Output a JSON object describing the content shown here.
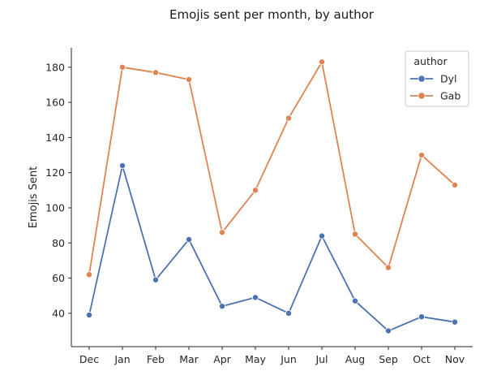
{
  "chart_data": {
    "type": "line",
    "title": "Emojis sent per month, by author",
    "xlabel": "",
    "ylabel": "Emojis Sent",
    "categories": [
      "Dec",
      "Jan",
      "Feb",
      "Mar",
      "Apr",
      "May",
      "Jun",
      "Jul",
      "Aug",
      "Sep",
      "Oct",
      "Nov"
    ],
    "yticks": [
      40,
      60,
      80,
      100,
      120,
      140,
      160,
      180
    ],
    "ylim": [
      21,
      191
    ],
    "grid": false,
    "legend": {
      "title": "author",
      "position": "top-right"
    },
    "series": [
      {
        "name": "Dyl",
        "color": "#4c72b0",
        "values": [
          39,
          124,
          59,
          82,
          44,
          49,
          40,
          84,
          47,
          30,
          38,
          35
        ]
      },
      {
        "name": "Gab",
        "color": "#dd8452",
        "values": [
          62,
          180,
          177,
          173,
          86,
          110,
          151,
          183,
          85,
          66,
          130,
          113
        ]
      }
    ]
  }
}
